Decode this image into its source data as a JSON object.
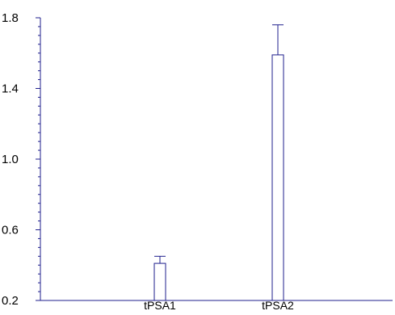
{
  "chart_data": {
    "type": "bar",
    "categories": [
      "tPSA1",
      "tPSA2"
    ],
    "series": [
      {
        "values": [
          0.41,
          1.59
        ],
        "error_upper": [
          0.45,
          1.76
        ]
      }
    ],
    "ylim": [
      0.2,
      1.8
    ],
    "y_ticks": [
      0.2,
      0.6,
      1.0,
      1.4,
      1.8
    ],
    "y_tick_labels": [
      "0.2",
      "0.6",
      "1.0",
      "1.4",
      "1.8"
    ],
    "y_minor_step": 0.05,
    "title": "",
    "xlabel": "",
    "ylabel": "",
    "grid": false,
    "colors": {
      "axis": "#1f1f8c",
      "bar_stroke": "#1f1f8c",
      "bar_fill": "#ffffff",
      "error_bar": "#1f1f8c",
      "text": "#000000"
    }
  }
}
